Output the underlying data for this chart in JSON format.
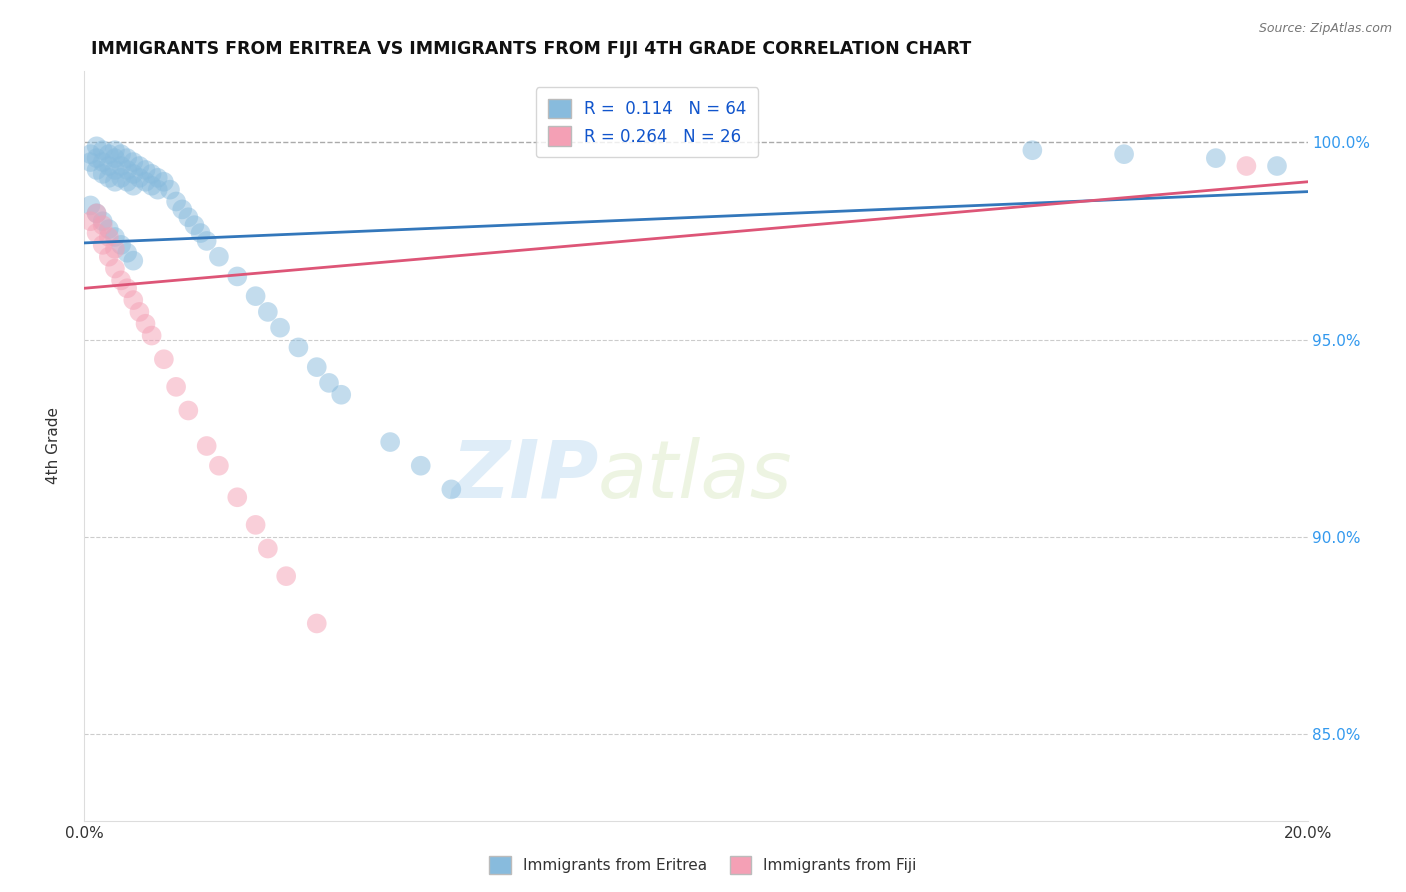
{
  "title": "IMMIGRANTS FROM ERITREA VS IMMIGRANTS FROM FIJI 4TH GRADE CORRELATION CHART",
  "source_text": "Source: ZipAtlas.com",
  "ylabel": "4th Grade",
  "xlim": [
    0.0,
    0.2
  ],
  "ylim": [
    0.828,
    1.018
  ],
  "xticks": [
    0.0,
    0.05,
    0.1,
    0.15,
    0.2
  ],
  "xticklabels": [
    "0.0%",
    "",
    "",
    "",
    "20.0%"
  ],
  "yticks": [
    0.85,
    0.9,
    0.95,
    1.0
  ],
  "yticklabels": [
    "85.0%",
    "90.0%",
    "95.0%",
    "100.0%"
  ],
  "blue_color": "#88bbdd",
  "pink_color": "#f4a0b5",
  "blue_line_color": "#3377bb",
  "pink_line_color": "#dd5577",
  "R_blue": 0.114,
  "N_blue": 64,
  "R_pink": 0.264,
  "N_pink": 26,
  "watermark_zip": "ZIP",
  "watermark_atlas": "atlas",
  "legend_label_blue": "Immigrants from Eritrea",
  "legend_label_pink": "Immigrants from Fiji",
  "blue_x": [
    0.001,
    0.001,
    0.002,
    0.002,
    0.002,
    0.003,
    0.003,
    0.003,
    0.004,
    0.004,
    0.004,
    0.005,
    0.005,
    0.005,
    0.005,
    0.006,
    0.006,
    0.006,
    0.007,
    0.007,
    0.007,
    0.008,
    0.008,
    0.008,
    0.009,
    0.009,
    0.01,
    0.01,
    0.011,
    0.011,
    0.012,
    0.012,
    0.013,
    0.014,
    0.015,
    0.016,
    0.017,
    0.018,
    0.019,
    0.02,
    0.022,
    0.025,
    0.028,
    0.03,
    0.032,
    0.035,
    0.038,
    0.04,
    0.042,
    0.05,
    0.055,
    0.06,
    0.155,
    0.17,
    0.185,
    0.195,
    0.001,
    0.002,
    0.003,
    0.004,
    0.005,
    0.006,
    0.007,
    0.008
  ],
  "blue_y": [
    0.997,
    0.995,
    0.999,
    0.996,
    0.993,
    0.998,
    0.995,
    0.992,
    0.997,
    0.994,
    0.991,
    0.998,
    0.996,
    0.993,
    0.99,
    0.997,
    0.994,
    0.991,
    0.996,
    0.993,
    0.99,
    0.995,
    0.992,
    0.989,
    0.994,
    0.991,
    0.993,
    0.99,
    0.992,
    0.989,
    0.991,
    0.988,
    0.99,
    0.988,
    0.985,
    0.983,
    0.981,
    0.979,
    0.977,
    0.975,
    0.971,
    0.966,
    0.961,
    0.957,
    0.953,
    0.948,
    0.943,
    0.939,
    0.936,
    0.924,
    0.918,
    0.912,
    0.998,
    0.997,
    0.996,
    0.994,
    0.984,
    0.982,
    0.98,
    0.978,
    0.976,
    0.974,
    0.972,
    0.97
  ],
  "pink_x": [
    0.001,
    0.002,
    0.002,
    0.003,
    0.003,
    0.004,
    0.004,
    0.005,
    0.005,
    0.006,
    0.007,
    0.008,
    0.009,
    0.01,
    0.011,
    0.013,
    0.015,
    0.017,
    0.02,
    0.022,
    0.025,
    0.028,
    0.03,
    0.033,
    0.038,
    0.19
  ],
  "pink_y": [
    0.98,
    0.977,
    0.982,
    0.974,
    0.979,
    0.971,
    0.976,
    0.968,
    0.973,
    0.965,
    0.963,
    0.96,
    0.957,
    0.954,
    0.951,
    0.945,
    0.938,
    0.932,
    0.923,
    0.918,
    0.91,
    0.903,
    0.897,
    0.89,
    0.878,
    0.994
  ],
  "blue_trend": [
    0.9745,
    0.9875
  ],
  "pink_trend": [
    0.963,
    0.99
  ]
}
